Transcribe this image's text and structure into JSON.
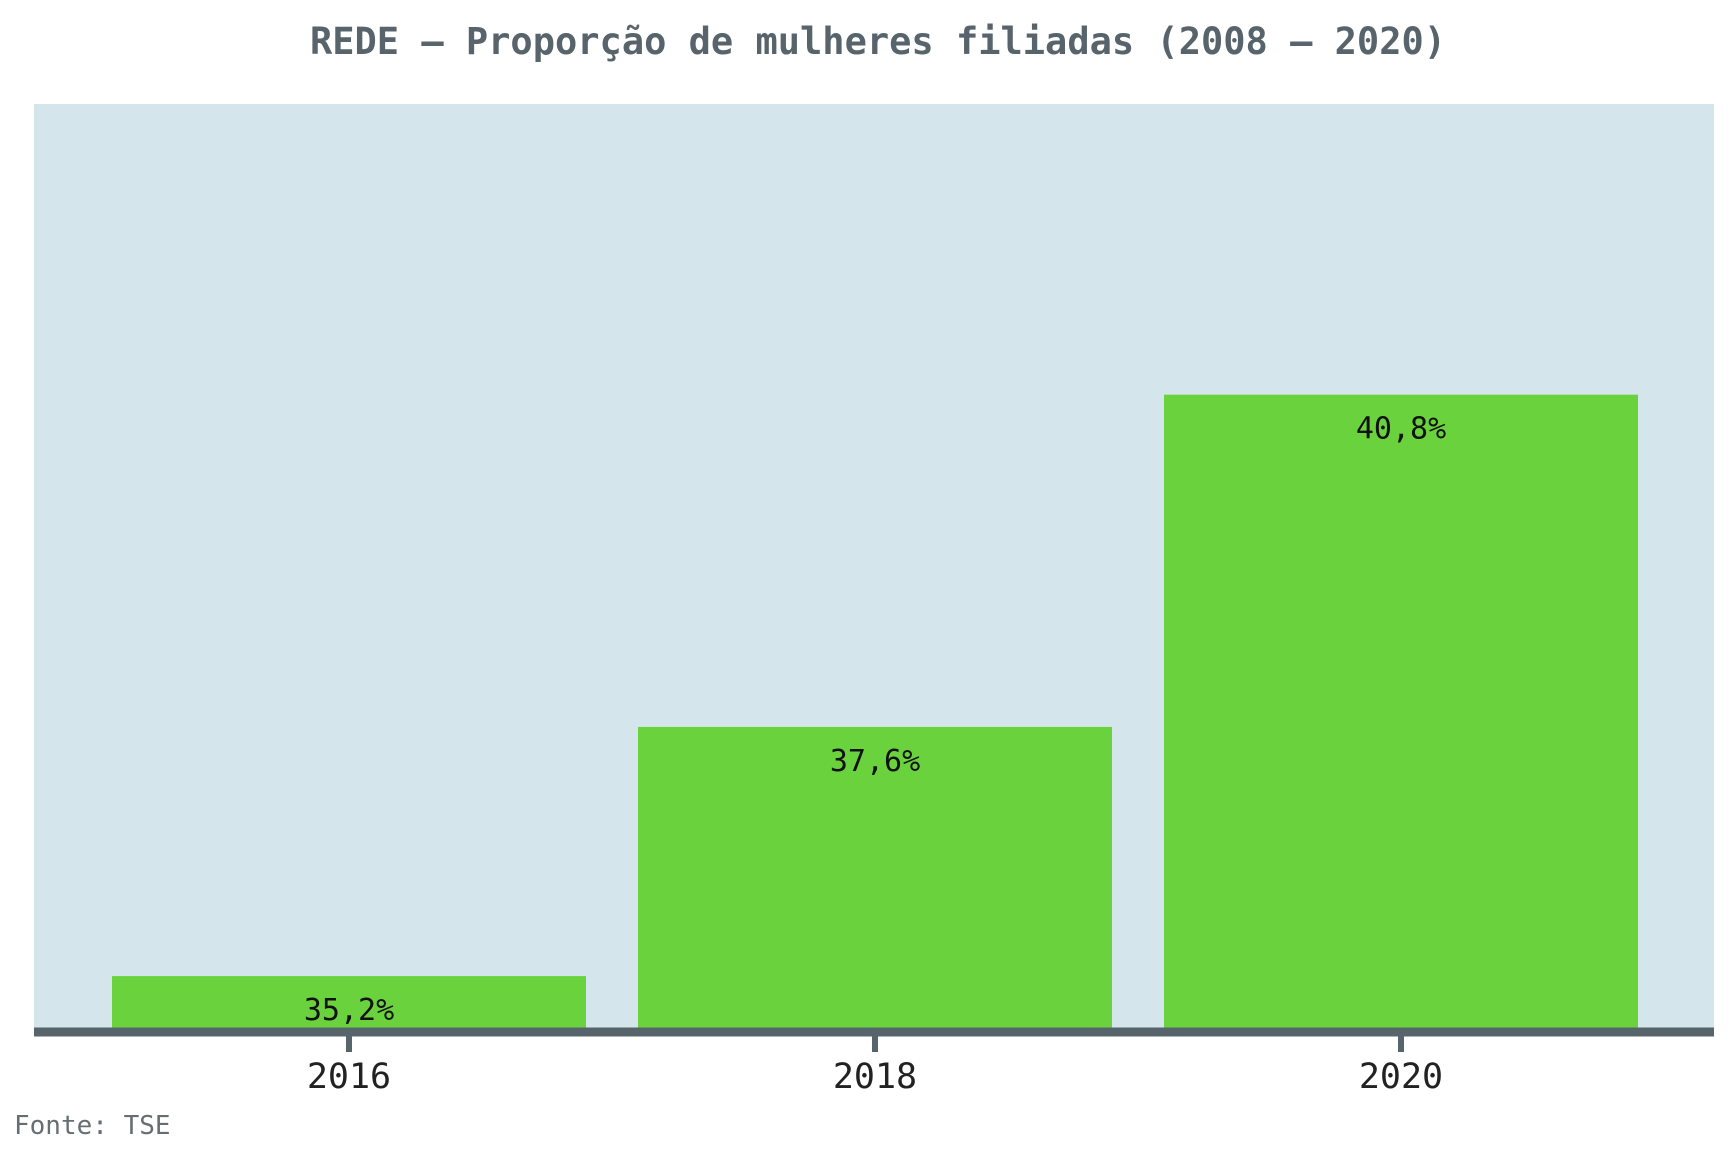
{
  "colors": {
    "panel_bg": "#d4e5ec",
    "bar": "#6ad23c",
    "axis": "#58646b"
  },
  "source": "Fonte: TSE",
  "chart_data": {
    "type": "bar",
    "title": "REDE – Proporção de mulheres filiadas (2008 – 2020)",
    "xlabel": "",
    "ylabel": "",
    "categories": [
      "2016",
      "2018",
      "2020"
    ],
    "values": [
      35.2,
      37.6,
      40.8
    ],
    "value_labels": [
      "35,2%",
      "37,6%",
      "40,8%"
    ],
    "ylim": [
      34.7,
      43.6
    ],
    "grid": false,
    "legend": "none"
  }
}
